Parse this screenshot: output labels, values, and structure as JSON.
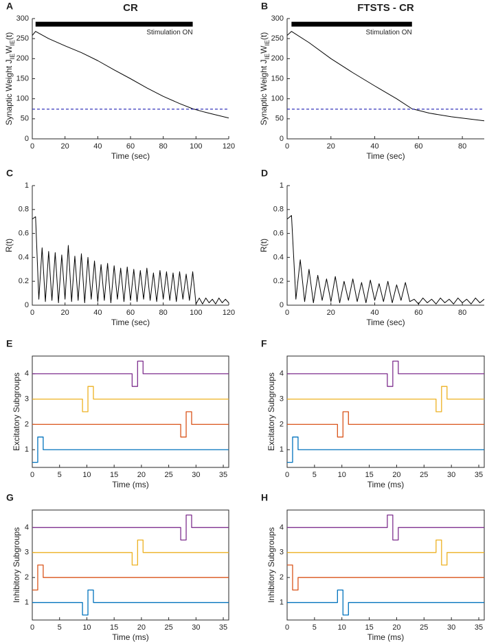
{
  "chart_data": [
    {
      "type": "line",
      "panel_label": "A",
      "title": "CR",
      "x_label": "Time (sec)",
      "y_label": [
        {
          "text": "Synaptic Weight J"
        },
        {
          "text": "IE",
          "sub": true
        },
        {
          "text": "W"
        },
        {
          "text": "IE",
          "sub": true
        },
        {
          "text": "(t)"
        }
      ],
      "xlim": [
        0,
        120
      ],
      "xticks": [
        0,
        20,
        40,
        60,
        80,
        100,
        120
      ],
      "ylim": [
        0,
        300
      ],
      "yticks": [
        0,
        50,
        100,
        150,
        200,
        250,
        300
      ],
      "box": false,
      "series": [
        {
          "color": "#000000",
          "x": [
            0,
            2,
            10,
            20,
            30,
            40,
            50,
            60,
            70,
            80,
            90,
            98,
            105,
            110,
            120
          ],
          "values": [
            258,
            268,
            250,
            232,
            215,
            195,
            172,
            150,
            127,
            106,
            88,
            75,
            67,
            62,
            52
          ]
        }
      ],
      "hline": {
        "value": 74,
        "color": "#1f1fb4",
        "dashed": true
      },
      "stim_bar": {
        "x": [
          2,
          98
        ],
        "value": 286,
        "label": "Stimulation ON"
      }
    },
    {
      "type": "line",
      "panel_label": "B",
      "title": "FTSTS - CR",
      "x_label": "Time (sec)",
      "y_label": [
        {
          "text": "Synaptic Weight J"
        },
        {
          "text": "IE",
          "sub": true
        },
        {
          "text": "W"
        },
        {
          "text": "IE",
          "sub": true
        },
        {
          "text": "(t)"
        }
      ],
      "xlim": [
        0,
        90
      ],
      "xticks": [
        0,
        20,
        40,
        60,
        80
      ],
      "ylim": [
        0,
        300
      ],
      "yticks": [
        0,
        50,
        100,
        150,
        200,
        250,
        300
      ],
      "box": false,
      "series": [
        {
          "color": "#000000",
          "x": [
            0,
            2,
            10,
            20,
            30,
            40,
            50,
            57,
            65,
            75,
            90
          ],
          "values": [
            258,
            268,
            240,
            200,
            165,
            132,
            100,
            75,
            64,
            55,
            45
          ]
        }
      ],
      "hline": {
        "value": 74,
        "color": "#1f1fb4",
        "dashed": true
      },
      "stim_bar": {
        "x": [
          2,
          57
        ],
        "value": 286,
        "label": "Stimulation ON"
      }
    },
    {
      "type": "line",
      "panel_label": "C",
      "x_label": "Time (sec)",
      "y_label": [
        {
          "text": "R(t)"
        }
      ],
      "xlim": [
        0,
        120
      ],
      "xticks": [
        0,
        20,
        40,
        60,
        80,
        100,
        120
      ],
      "ylim": [
        0,
        1
      ],
      "yticks": [
        0,
        0.2,
        0.4,
        0.6,
        0.8,
        1
      ],
      "box": false,
      "series": [
        {
          "color": "#000000",
          "x": [
            0,
            2,
            4,
            6,
            8,
            10,
            12,
            14,
            16,
            18,
            20,
            22,
            24,
            26,
            28,
            30,
            32,
            34,
            36,
            38,
            40,
            42,
            44,
            46,
            48,
            50,
            52,
            54,
            56,
            58,
            60,
            62,
            64,
            66,
            68,
            70,
            72,
            74,
            76,
            78,
            80,
            82,
            84,
            86,
            88,
            90,
            92,
            94,
            96,
            98,
            100,
            102,
            104,
            106,
            108,
            110,
            112,
            114,
            116,
            118,
            120
          ],
          "values": [
            0.72,
            0.74,
            0.05,
            0.48,
            0.03,
            0.45,
            0.04,
            0.44,
            0.02,
            0.42,
            0.05,
            0.5,
            0.03,
            0.41,
            0.04,
            0.43,
            0.02,
            0.4,
            0.05,
            0.37,
            0.03,
            0.34,
            0.04,
            0.35,
            0.02,
            0.33,
            0.05,
            0.31,
            0.03,
            0.32,
            0.04,
            0.3,
            0.03,
            0.29,
            0.05,
            0.31,
            0.04,
            0.27,
            0.03,
            0.29,
            0.05,
            0.28,
            0.04,
            0.27,
            0.03,
            0.28,
            0.05,
            0.26,
            0.04,
            0.28,
            0.01,
            0.06,
            0.01,
            0.06,
            0.02,
            0.05,
            0.01,
            0.06,
            0.02,
            0.05,
            0.02
          ]
        }
      ]
    },
    {
      "type": "line",
      "panel_label": "D",
      "x_label": "Time (sec)",
      "y_label": [
        {
          "text": "R(t)"
        }
      ],
      "xlim": [
        0,
        90
      ],
      "xticks": [
        0,
        20,
        40,
        60,
        80
      ],
      "ylim": [
        0,
        1
      ],
      "yticks": [
        0,
        0.2,
        0.4,
        0.6,
        0.8,
        1
      ],
      "box": false,
      "series": [
        {
          "color": "#000000",
          "x": [
            0,
            2,
            4,
            6,
            8,
            10,
            12,
            14,
            16,
            18,
            20,
            22,
            24,
            26,
            28,
            30,
            32,
            34,
            36,
            38,
            40,
            42,
            44,
            46,
            48,
            50,
            52,
            54,
            56,
            58,
            60,
            62,
            64,
            66,
            68,
            70,
            72,
            74,
            76,
            78,
            80,
            82,
            84,
            86,
            88,
            90
          ],
          "values": [
            0.72,
            0.75,
            0.05,
            0.38,
            0.03,
            0.3,
            0.02,
            0.25,
            0.04,
            0.22,
            0.03,
            0.24,
            0.02,
            0.2,
            0.04,
            0.22,
            0.03,
            0.19,
            0.02,
            0.21,
            0.04,
            0.18,
            0.03,
            0.2,
            0.02,
            0.17,
            0.04,
            0.19,
            0.03,
            0.05,
            0.01,
            0.06,
            0.02,
            0.05,
            0.01,
            0.06,
            0.02,
            0.05,
            0.01,
            0.06,
            0.02,
            0.05,
            0.01,
            0.06,
            0.02,
            0.05
          ]
        }
      ]
    },
    {
      "type": "line",
      "panel_label": "E",
      "x_label": "Time (ms)",
      "y_label": [
        {
          "text": "Excitatory Subgroups"
        }
      ],
      "xlim": [
        0,
        36
      ],
      "xticks": [
        0,
        5,
        10,
        15,
        20,
        25,
        30,
        35
      ],
      "ylim": [
        0.3,
        4.7
      ],
      "yticks": [
        1,
        2,
        3,
        4
      ],
      "box": true,
      "series": [
        {
          "color": "#0072bd",
          "x": [
            0,
            1,
            1,
            2,
            2,
            36
          ],
          "values": [
            0.5,
            0.5,
            1.5,
            1.5,
            1,
            1
          ]
        },
        {
          "color": "#d95319",
          "x": [
            0,
            27.2,
            27.2,
            28.2,
            28.2,
            29.2,
            29.2,
            36
          ],
          "values": [
            2,
            2,
            1.5,
            1.5,
            2.5,
            2.5,
            2,
            2
          ]
        },
        {
          "color": "#edb120",
          "x": [
            0,
            9.2,
            9.2,
            10.2,
            10.2,
            11.2,
            11.2,
            36
          ],
          "values": [
            3,
            3,
            2.5,
            2.5,
            3.5,
            3.5,
            3,
            3
          ]
        },
        {
          "color": "#7e2f8e",
          "x": [
            0,
            18.3,
            18.3,
            19.3,
            19.3,
            20.3,
            20.3,
            36
          ],
          "values": [
            4,
            4,
            3.5,
            3.5,
            4.5,
            4.5,
            4,
            4
          ]
        }
      ]
    },
    {
      "type": "line",
      "panel_label": "F",
      "x_label": "Time (ms)",
      "y_label": [
        {
          "text": "Excitatory Subgroups"
        }
      ],
      "xlim": [
        0,
        36
      ],
      "xticks": [
        0,
        5,
        10,
        15,
        20,
        25,
        30,
        35
      ],
      "ylim": [
        0.3,
        4.7
      ],
      "yticks": [
        1,
        2,
        3,
        4
      ],
      "box": true,
      "series": [
        {
          "color": "#0072bd",
          "x": [
            0,
            1,
            1,
            2,
            2,
            36
          ],
          "values": [
            0.5,
            0.5,
            1.5,
            1.5,
            1,
            1
          ]
        },
        {
          "color": "#d95319",
          "x": [
            0,
            9.2,
            9.2,
            10.2,
            10.2,
            11.2,
            11.2,
            36
          ],
          "values": [
            2,
            2,
            1.5,
            1.5,
            2.5,
            2.5,
            2,
            2
          ]
        },
        {
          "color": "#edb120",
          "x": [
            0,
            27.2,
            27.2,
            28.2,
            28.2,
            29.2,
            29.2,
            36
          ],
          "values": [
            3,
            3,
            2.5,
            2.5,
            3.5,
            3.5,
            3,
            3
          ]
        },
        {
          "color": "#7e2f8e",
          "x": [
            0,
            18.3,
            18.3,
            19.3,
            19.3,
            20.3,
            20.3,
            36
          ],
          "values": [
            4,
            4,
            3.5,
            3.5,
            4.5,
            4.5,
            4,
            4
          ]
        }
      ]
    },
    {
      "type": "line",
      "panel_label": "G",
      "x_label": "Time (ms)",
      "y_label": [
        {
          "text": "Inhibitory Subgroups"
        }
      ],
      "xlim": [
        0,
        36
      ],
      "xticks": [
        0,
        5,
        10,
        15,
        20,
        25,
        30,
        35
      ],
      "ylim": [
        0.3,
        4.7
      ],
      "yticks": [
        1,
        2,
        3,
        4
      ],
      "box": true,
      "series": [
        {
          "color": "#0072bd",
          "x": [
            0,
            9.2,
            9.2,
            10.2,
            10.2,
            11.2,
            11.2,
            36
          ],
          "values": [
            1,
            1,
            0.5,
            0.5,
            1.5,
            1.5,
            1,
            1
          ]
        },
        {
          "color": "#d95319",
          "x": [
            0,
            1,
            1,
            2,
            2,
            36
          ],
          "values": [
            1.5,
            1.5,
            2.5,
            2.5,
            2,
            2
          ]
        },
        {
          "color": "#edb120",
          "x": [
            0,
            18.3,
            18.3,
            19.3,
            19.3,
            20.3,
            20.3,
            36
          ],
          "values": [
            3,
            3,
            2.5,
            2.5,
            3.5,
            3.5,
            3,
            3
          ]
        },
        {
          "color": "#7e2f8e",
          "x": [
            0,
            27.2,
            27.2,
            28.2,
            28.2,
            29.2,
            29.2,
            36
          ],
          "values": [
            4,
            4,
            3.5,
            3.5,
            4.5,
            4.5,
            4,
            4
          ]
        }
      ]
    },
    {
      "type": "line",
      "panel_label": "H",
      "x_label": "Time (ms)",
      "y_label": [
        {
          "text": "Inhibitory Subgroups"
        }
      ],
      "xlim": [
        0,
        36
      ],
      "xticks": [
        0,
        5,
        10,
        15,
        20,
        25,
        30,
        35
      ],
      "ylim": [
        0.3,
        4.7
      ],
      "yticks": [
        1,
        2,
        3,
        4
      ],
      "box": true,
      "series": [
        {
          "color": "#0072bd",
          "x": [
            0,
            9.2,
            9.2,
            10.2,
            10.2,
            11.2,
            11.2,
            36
          ],
          "values": [
            1,
            1,
            1.5,
            1.5,
            0.5,
            0.5,
            1,
            1
          ]
        },
        {
          "color": "#d95319",
          "x": [
            0,
            1,
            1,
            2,
            2,
            36
          ],
          "values": [
            2.5,
            2.5,
            1.5,
            1.5,
            2,
            2
          ]
        },
        {
          "color": "#edb120",
          "x": [
            0,
            27.2,
            27.2,
            28.2,
            28.2,
            29.2,
            29.2,
            36
          ],
          "values": [
            3,
            3,
            3.5,
            3.5,
            2.5,
            2.5,
            3,
            3
          ]
        },
        {
          "color": "#7e2f8e",
          "x": [
            0,
            18.3,
            18.3,
            19.3,
            19.3,
            20.3,
            20.3,
            36
          ],
          "values": [
            4,
            4,
            4.5,
            4.5,
            3.5,
            3.5,
            4,
            4
          ]
        }
      ]
    }
  ]
}
